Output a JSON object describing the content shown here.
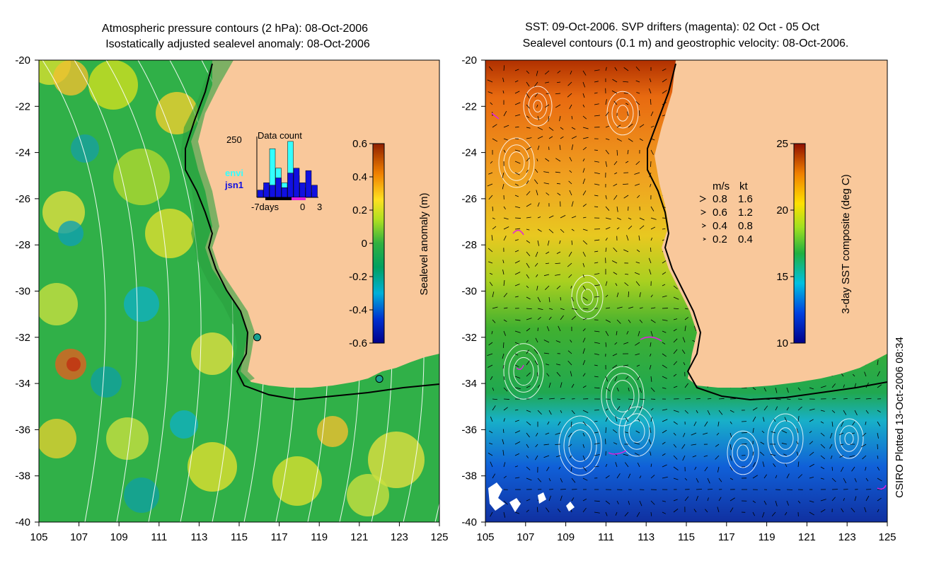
{
  "left_panel": {
    "title_line1": "Atmospheric pressure contours (2 hPa): 08-Oct-2006",
    "title_line2": "Isostatically adjusted sealevel anomaly: 08-Oct-2006",
    "lon_ticks": [
      "105",
      "107",
      "109",
      "111",
      "113",
      "115",
      "117",
      "119",
      "121",
      "123",
      "125"
    ],
    "lat_ticks": [
      "-20",
      "-22",
      "-24",
      "-26",
      "-28",
      "-30",
      "-32",
      "-34",
      "-36",
      "-38",
      "-40"
    ],
    "colorbar": {
      "label": "Sealevel anomaly (m)",
      "ticks": [
        "0.6",
        "0.4",
        "0.2",
        "0",
        "-0.2",
        "-0.4",
        "-0.6"
      ],
      "range": [
        -0.6,
        0.6
      ]
    },
    "inset": {
      "title": "Data count",
      "ymax_label": "250",
      "series": [
        {
          "name": "envi",
          "color": "#33ffff"
        },
        {
          "name": "jsn1",
          "color": "#1010e0"
        }
      ],
      "x_labels": [
        "-7days",
        "0",
        "3"
      ],
      "envi_counts": [
        0,
        40,
        200,
        120,
        60,
        230,
        90,
        40,
        20,
        0
      ],
      "jsn1_counts": [
        30,
        60,
        50,
        80,
        40,
        100,
        120,
        60,
        110,
        50
      ]
    },
    "stations": [
      {
        "lon": 115.9,
        "lat": -32.0
      },
      {
        "lon": 122.0,
        "lat": -33.8
      }
    ]
  },
  "right_panel": {
    "title_line1": "SST: 09-Oct-2006. SVP drifters (magenta): 02 Oct - 05 Oct",
    "title_line2": "Sealevel contours (0.1 m) and geostrophic velocity: 08-Oct-2006.",
    "lon_ticks": [
      "105",
      "107",
      "109",
      "111",
      "113",
      "115",
      "117",
      "119",
      "121",
      "123",
      "125"
    ],
    "lat_ticks": [
      "-20",
      "-22",
      "-24",
      "-26",
      "-28",
      "-30",
      "-32",
      "-34",
      "-36",
      "-38",
      "-40"
    ],
    "colorbar": {
      "label": "3-day SST composite (deg C)",
      "ticks": [
        "25",
        "20",
        "15",
        "10"
      ],
      "range": [
        10,
        25
      ]
    },
    "velocity_legend": {
      "header_ms": "m/s",
      "header_kt": "kt",
      "rows": [
        {
          "ms": "0.8",
          "kt": "1.6"
        },
        {
          "ms": "0.6",
          "kt": "1.2"
        },
        {
          "ms": "0.4",
          "kt": "0.8"
        },
        {
          "ms": "0.2",
          "kt": "0.4"
        }
      ]
    }
  },
  "credit": "CSIRO Plotted 13-Oct-2006 08:34",
  "colors": {
    "land": "#f9c89b",
    "ocean_green": "#2fb44a",
    "coast": "#000000",
    "contour": "#ffffff",
    "drifter": "#e020e0",
    "station": "#18a090"
  }
}
